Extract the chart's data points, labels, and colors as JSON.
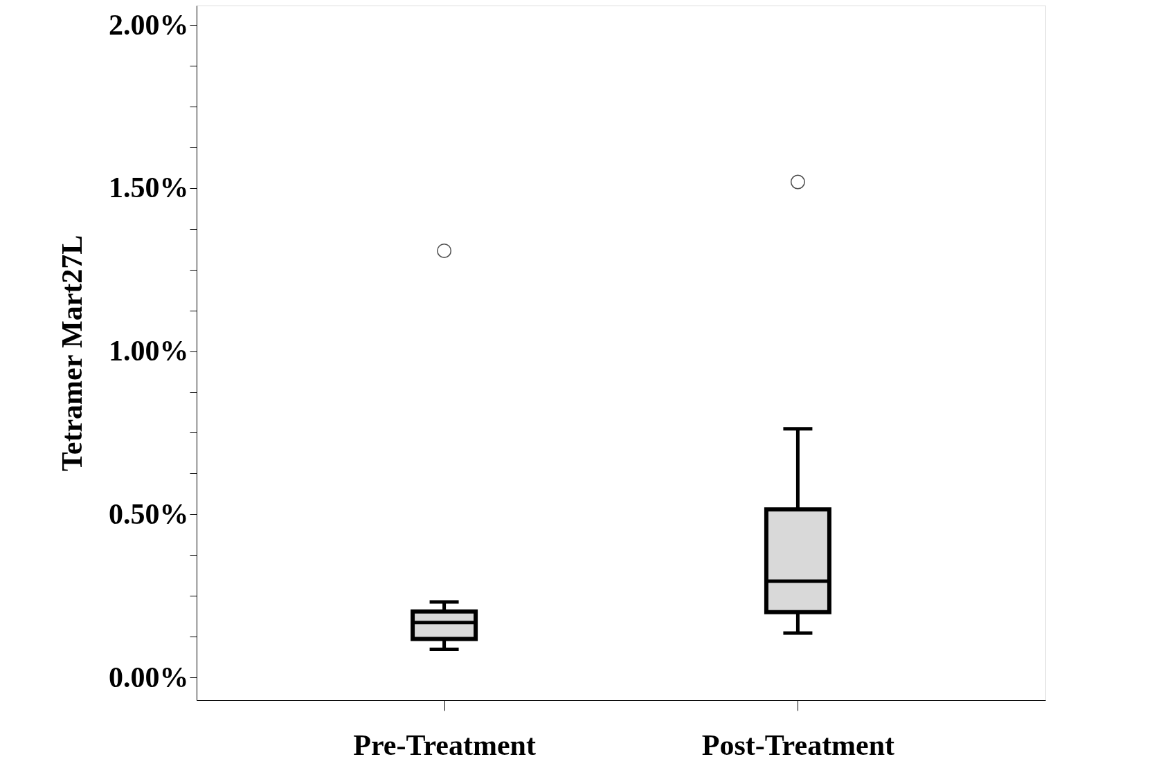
{
  "chart_data": {
    "type": "box",
    "ylabel": "Tetramer Mart27L",
    "categories": [
      "Pre-Treatment",
      "Post-Treatment"
    ],
    "series": [
      {
        "color": "#d9d9d9",
        "boxes": [
          {
            "low": 0.086,
            "q1": 0.118,
            "median": 0.168,
            "q3": 0.202,
            "high": 0.231,
            "outliers": [
              1.308
            ]
          },
          {
            "low": 0.136,
            "q1": 0.2,
            "median": 0.295,
            "q3": 0.515,
            "high": 0.762,
            "outliers": [
              1.519
            ]
          }
        ]
      }
    ],
    "ylim": [
      -0.07,
      2.06
    ],
    "yticks": [
      {
        "value": 0,
        "label": "0.00%"
      },
      {
        "value": 0.125,
        "label": null
      },
      {
        "value": 0.25,
        "label": null
      },
      {
        "value": 0.375,
        "label": null
      },
      {
        "value": 0.5,
        "label": "0.50%"
      },
      {
        "value": 0.625,
        "label": null
      },
      {
        "value": 0.75,
        "label": null
      },
      {
        "value": 0.875,
        "label": null
      },
      {
        "value": 1,
        "label": "1.00%"
      },
      {
        "value": 1.125,
        "label": null
      },
      {
        "value": 1.25,
        "label": null
      },
      {
        "value": 1.375,
        "label": null
      },
      {
        "value": 1.5,
        "label": "1.50%"
      },
      {
        "value": 1.625,
        "label": null
      },
      {
        "value": 1.75,
        "label": null
      },
      {
        "value": 1.875,
        "label": null
      },
      {
        "value": 2,
        "label": "2.00%"
      }
    ],
    "grid": false
  }
}
